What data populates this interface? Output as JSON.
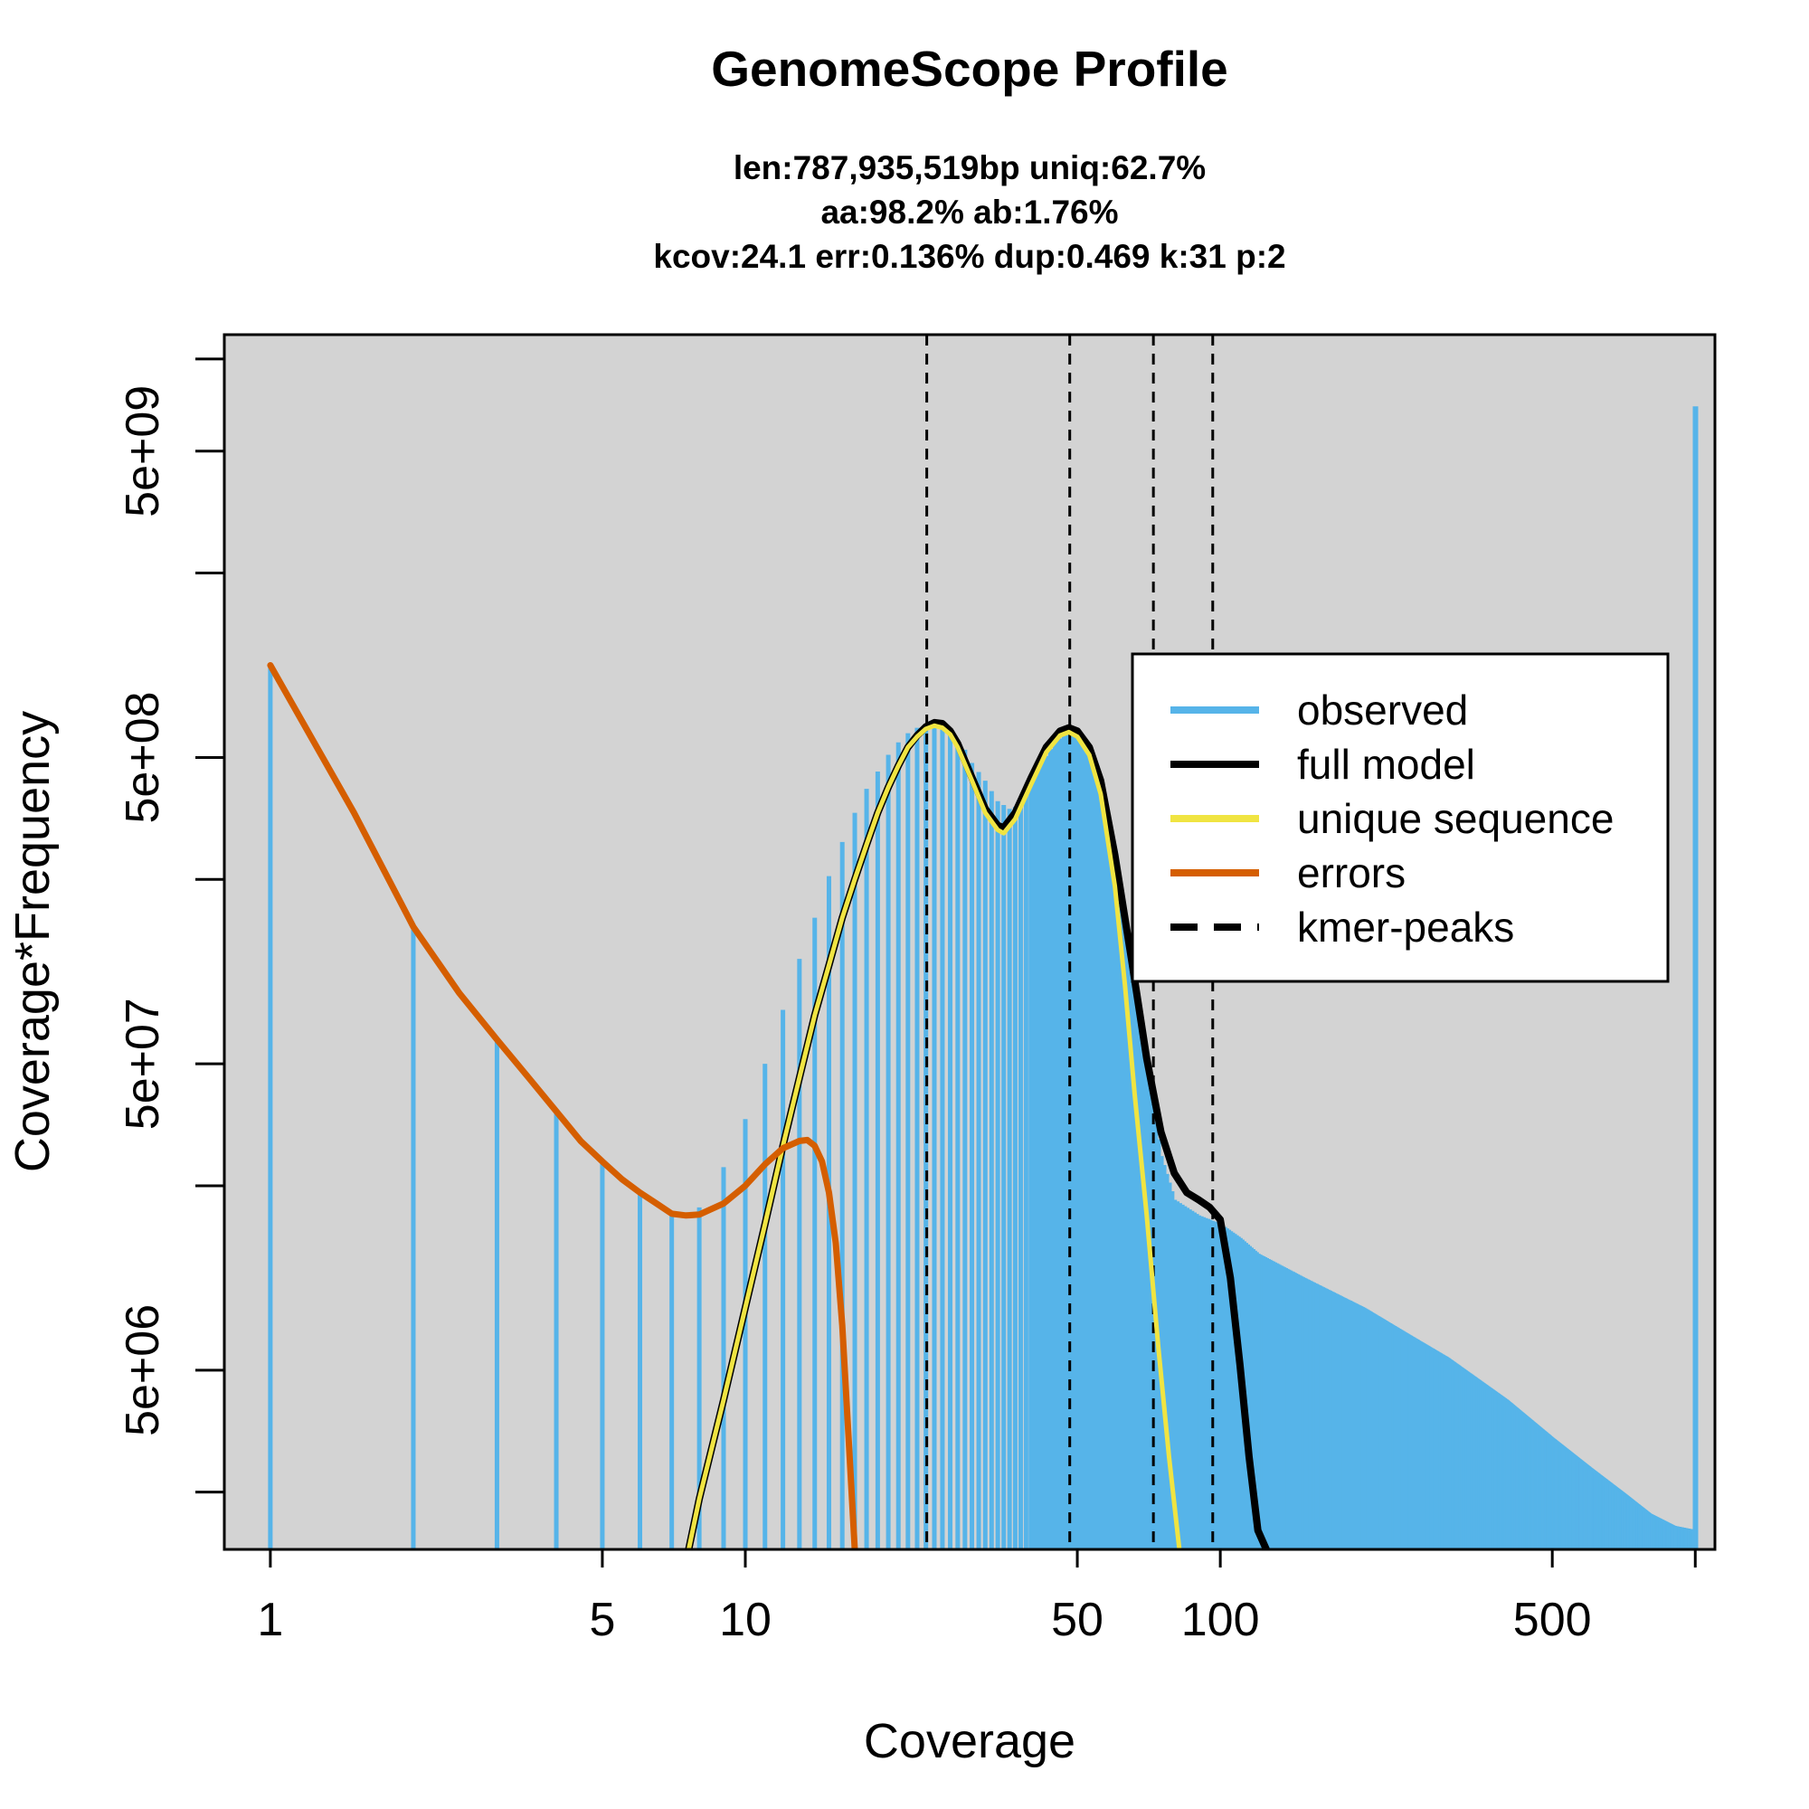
{
  "chart_data": {
    "type": "bar",
    "title": "GenomeScope Profile",
    "subtitle_lines": [
      "len:787,935,519bp uniq:62.7%",
      "aa:98.2% ab:1.76%",
      "kcov:24.1 err:0.136%  dup:0.469  k:31 p:2"
    ],
    "xlabel": "Coverage",
    "ylabel": "Coverage*Frequency",
    "x_scale": "log",
    "y_scale": "log",
    "xlim": [
      0.8,
      1100
    ],
    "ylim": [
      1300000,
      12000000000
    ],
    "x_ticks": [
      {
        "value": 1,
        "label": "1"
      },
      {
        "value": 5,
        "label": "5"
      },
      {
        "value": 10,
        "label": "10"
      },
      {
        "value": 50,
        "label": "50"
      },
      {
        "value": 100,
        "label": "100"
      },
      {
        "value": 500,
        "label": "500"
      },
      {
        "value": 1000,
        "label": ""
      }
    ],
    "y_ticks": [
      {
        "value": 2000000,
        "label": ""
      },
      {
        "value": 5000000,
        "label": "5e+06"
      },
      {
        "value": 20000000,
        "label": ""
      },
      {
        "value": 50000000,
        "label": "5e+07"
      },
      {
        "value": 200000000,
        "label": ""
      },
      {
        "value": 500000000,
        "label": "5e+08"
      },
      {
        "value": 2000000000,
        "label": ""
      },
      {
        "value": 5000000000,
        "label": "5e+09"
      },
      {
        "value": 10000000000,
        "label": ""
      }
    ],
    "background_color": "#d3d3d3",
    "grid": false,
    "legend_position": "top-right",
    "observed": {
      "name": "observed",
      "color": "#56b4e9",
      "points": [
        [
          1,
          1000000000
        ],
        [
          2,
          140000000
        ],
        [
          3,
          60000000
        ],
        [
          4,
          35000000
        ],
        [
          5,
          24000000
        ],
        [
          6,
          19000000
        ],
        [
          7,
          16000000
        ],
        [
          8,
          17000000
        ],
        [
          9,
          23000000
        ],
        [
          10,
          33000000
        ],
        [
          11,
          50000000
        ],
        [
          12,
          75000000
        ],
        [
          13,
          110000000
        ],
        [
          14,
          150000000
        ],
        [
          15,
          205000000
        ],
        [
          16,
          265000000
        ],
        [
          17,
          330000000
        ],
        [
          18,
          395000000
        ],
        [
          19,
          450000000
        ],
        [
          20,
          510000000
        ],
        [
          21,
          560000000
        ],
        [
          22,
          600000000
        ],
        [
          23,
          625000000
        ],
        [
          24,
          640000000
        ],
        [
          25,
          640000000
        ],
        [
          26,
          625000000
        ],
        [
          27,
          600000000
        ],
        [
          28,
          570000000
        ],
        [
          29,
          530000000
        ],
        [
          30,
          480000000
        ],
        [
          32,
          420000000
        ],
        [
          34,
          360000000
        ],
        [
          36,
          340000000
        ],
        [
          38,
          350000000
        ],
        [
          40,
          420000000
        ],
        [
          42,
          480000000
        ],
        [
          45,
          560000000
        ],
        [
          48,
          610000000
        ],
        [
          50,
          590000000
        ],
        [
          55,
          470000000
        ],
        [
          60,
          250000000
        ],
        [
          65,
          110000000
        ],
        [
          70,
          48000000
        ],
        [
          75,
          25000000
        ],
        [
          80,
          18000000
        ],
        [
          90,
          16000000
        ],
        [
          100,
          15000000
        ],
        [
          110,
          13500000
        ],
        [
          120,
          12000000
        ],
        [
          150,
          10000000
        ],
        [
          200,
          8000000
        ],
        [
          250,
          6500000
        ],
        [
          300,
          5500000
        ],
        [
          400,
          4000000
        ],
        [
          500,
          3000000
        ],
        [
          600,
          2400000
        ],
        [
          700,
          2000000
        ],
        [
          800,
          1700000
        ],
        [
          900,
          1550000
        ],
        [
          1000,
          1500000
        ],
        [
          1001,
          7000000000
        ]
      ]
    },
    "full_model": {
      "name": "full model",
      "color": "#000000",
      "points": [
        [
          7.6,
          1300000
        ],
        [
          8,
          1900000
        ],
        [
          9,
          4000000
        ],
        [
          10,
          8000000
        ],
        [
          11,
          15000000
        ],
        [
          12,
          27000000
        ],
        [
          13,
          45000000
        ],
        [
          14,
          72000000
        ],
        [
          15,
          105000000
        ],
        [
          16,
          150000000
        ],
        [
          17,
          200000000
        ],
        [
          18,
          260000000
        ],
        [
          19,
          330000000
        ],
        [
          20,
          400000000
        ],
        [
          21,
          470000000
        ],
        [
          22,
          540000000
        ],
        [
          23,
          590000000
        ],
        [
          24,
          630000000
        ],
        [
          25,
          650000000
        ],
        [
          26,
          645000000
        ],
        [
          27,
          610000000
        ],
        [
          28,
          555000000
        ],
        [
          30,
          430000000
        ],
        [
          32,
          340000000
        ],
        [
          34,
          300000000
        ],
        [
          35,
          295000000
        ],
        [
          37,
          330000000
        ],
        [
          40,
          430000000
        ],
        [
          43,
          540000000
        ],
        [
          46,
          610000000
        ],
        [
          48,
          625000000
        ],
        [
          50,
          610000000
        ],
        [
          53,
          540000000
        ],
        [
          56,
          420000000
        ],
        [
          60,
          240000000
        ],
        [
          65,
          110000000
        ],
        [
          70,
          52000000
        ],
        [
          75,
          30000000
        ],
        [
          80,
          22000000
        ],
        [
          85,
          19000000
        ],
        [
          90,
          18000000
        ],
        [
          95,
          17000000
        ],
        [
          100,
          15500000
        ],
        [
          105,
          10000000
        ],
        [
          110,
          5200000
        ],
        [
          115,
          2600000
        ],
        [
          120,
          1500000
        ],
        [
          125,
          1300000
        ]
      ]
    },
    "unique_sequence": {
      "name": "unique sequence",
      "color": "#f0e442",
      "points": [
        [
          7.6,
          1300000
        ],
        [
          8,
          1900000
        ],
        [
          9,
          4000000
        ],
        [
          10,
          8000000
        ],
        [
          11,
          15000000
        ],
        [
          12,
          27000000
        ],
        [
          13,
          45000000
        ],
        [
          14,
          72000000
        ],
        [
          15,
          105000000
        ],
        [
          16,
          150000000
        ],
        [
          17,
          200000000
        ],
        [
          18,
          260000000
        ],
        [
          19,
          330000000
        ],
        [
          20,
          400000000
        ],
        [
          21,
          470000000
        ],
        [
          22,
          540000000
        ],
        [
          23,
          585000000
        ],
        [
          24,
          620000000
        ],
        [
          25,
          635000000
        ],
        [
          26,
          625000000
        ],
        [
          27,
          595000000
        ],
        [
          28,
          540000000
        ],
        [
          30,
          420000000
        ],
        [
          32,
          330000000
        ],
        [
          34,
          290000000
        ],
        [
          35,
          283000000
        ],
        [
          37,
          315000000
        ],
        [
          40,
          410000000
        ],
        [
          43,
          520000000
        ],
        [
          46,
          590000000
        ],
        [
          48,
          605000000
        ],
        [
          50,
          585000000
        ],
        [
          53,
          510000000
        ],
        [
          56,
          380000000
        ],
        [
          60,
          190000000
        ],
        [
          63,
          90000000
        ],
        [
          66,
          40000000
        ],
        [
          70,
          16000000
        ],
        [
          74,
          6000000
        ],
        [
          78,
          2600000
        ],
        [
          82,
          1300000
        ]
      ]
    },
    "errors": {
      "name": "errors",
      "color": "#d55e00",
      "points": [
        [
          1,
          1000000000
        ],
        [
          1.5,
          330000000
        ],
        [
          2,
          140000000
        ],
        [
          2.5,
          85000000
        ],
        [
          3,
          60000000
        ],
        [
          3.5,
          45000000
        ],
        [
          4,
          35000000
        ],
        [
          4.5,
          28000000
        ],
        [
          5,
          24000000
        ],
        [
          5.5,
          21000000
        ],
        [
          6,
          19000000
        ],
        [
          6.5,
          17500000
        ],
        [
          7,
          16200000
        ],
        [
          7.5,
          16000000
        ],
        [
          8,
          16100000
        ],
        [
          9,
          17500000
        ],
        [
          10,
          20000000
        ],
        [
          11,
          23500000
        ],
        [
          12,
          26500000
        ],
        [
          13,
          28000000
        ],
        [
          13.5,
          28200000
        ],
        [
          14,
          27000000
        ],
        [
          14.5,
          24000000
        ],
        [
          15,
          19000000
        ],
        [
          15.5,
          13000000
        ],
        [
          16,
          7000000
        ],
        [
          16.5,
          3000000
        ],
        [
          17,
          1300000
        ]
      ]
    },
    "kmer_peaks": {
      "name": "kmer-peaks",
      "color": "#000000",
      "x": [
        24.1,
        48.2,
        72.3,
        96.4
      ]
    },
    "legend": [
      {
        "label": "observed",
        "color": "#56b4e9",
        "style": "solid"
      },
      {
        "label": "full model",
        "color": "#000000",
        "style": "solid"
      },
      {
        "label": "unique sequence",
        "color": "#f0e442",
        "style": "solid"
      },
      {
        "label": "errors",
        "color": "#d55e00",
        "style": "solid"
      },
      {
        "label": "kmer-peaks",
        "color": "#000000",
        "style": "dashed"
      }
    ]
  }
}
